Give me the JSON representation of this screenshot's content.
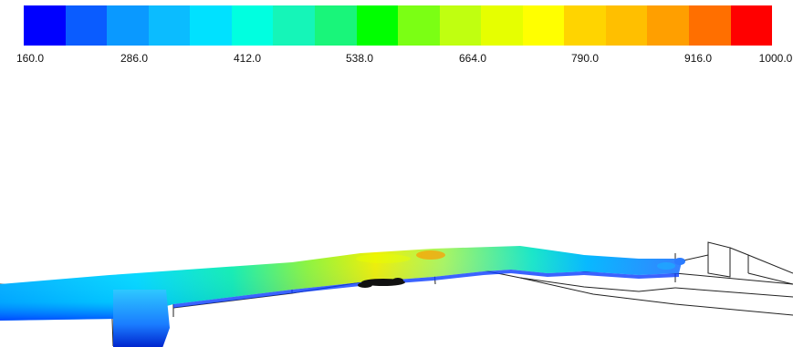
{
  "legend": {
    "colors": [
      "#0000ff",
      "#0a5cff",
      "#0a99ff",
      "#0bbcff",
      "#00e1ff",
      "#00ffe0",
      "#15f5b8",
      "#19f57a",
      "#00ff00",
      "#7bff14",
      "#c0ff10",
      "#e6ff00",
      "#ffff00",
      "#ffd400",
      "#ffbf00",
      "#ff9f00",
      "#ff6f00",
      "#ff0000"
    ],
    "tick_labels": [
      "160.0",
      "286.0",
      "412.0",
      "538.0",
      "664.0",
      "790.0",
      "916.0",
      "1000.0"
    ]
  },
  "scene": {
    "description_icon": "flow-contour-geometry"
  }
}
